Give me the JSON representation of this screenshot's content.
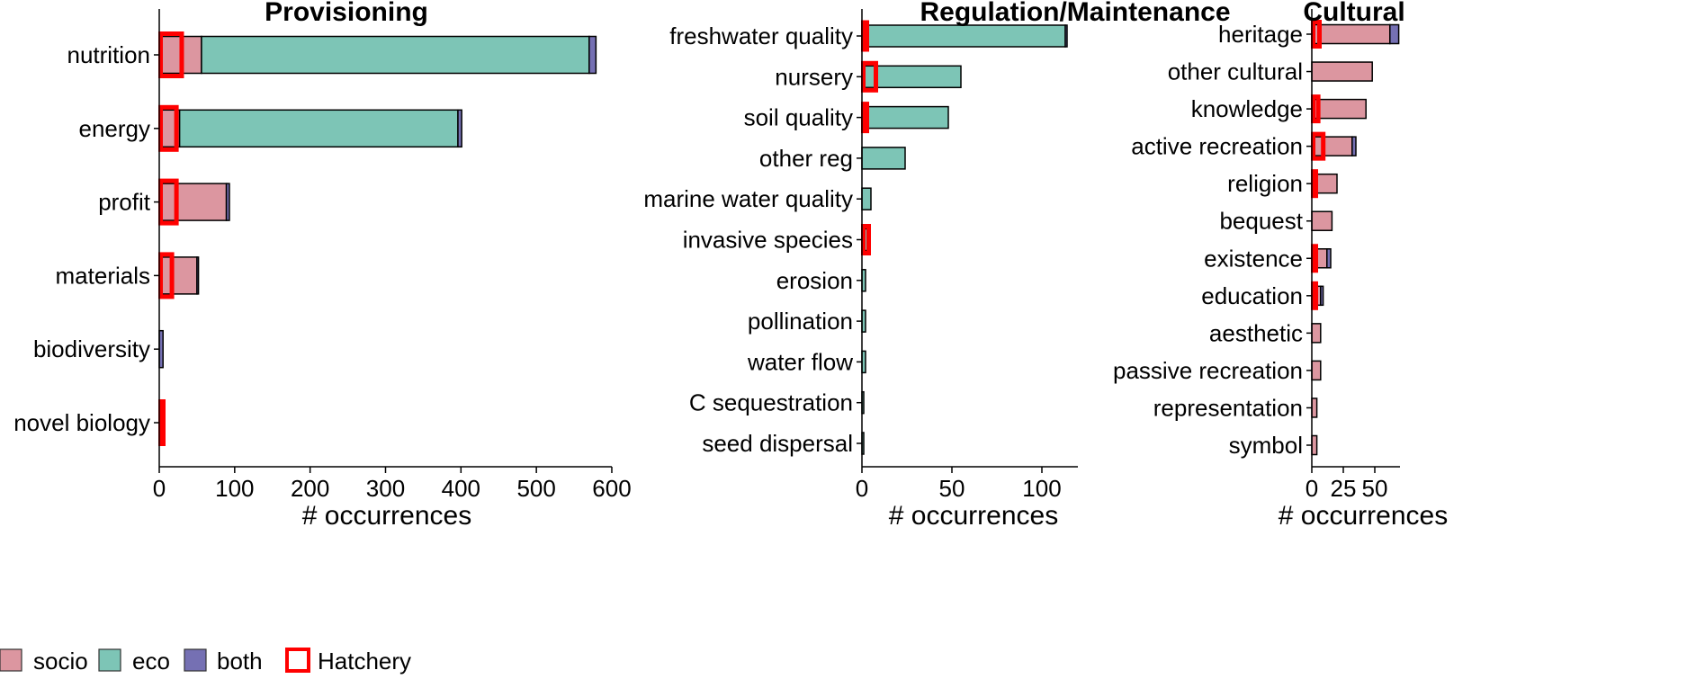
{
  "colors": {
    "socio": "#DC96A0",
    "eco": "#7DC5B6",
    "both": "#7570B3",
    "hatchery": "#FF0000",
    "outline": "#000000"
  },
  "chart_data": [
    {
      "type": "bar",
      "orientation": "horizontal",
      "stacked": true,
      "title": "Provisioning",
      "xlabel": "# occurrences",
      "xlim": [
        0,
        600
      ],
      "xticks": [
        0,
        100,
        200,
        300,
        400,
        500,
        600
      ],
      "categories": [
        "nutrition",
        "energy",
        "profit",
        "materials",
        "biodiversity",
        "novel biology"
      ],
      "series": [
        {
          "name": "socio",
          "values": [
            56,
            27,
            89,
            50,
            0,
            0
          ]
        },
        {
          "name": "eco",
          "values": [
            514,
            369,
            0,
            0,
            0,
            0
          ]
        },
        {
          "name": "both",
          "values": [
            9,
            5,
            4,
            2,
            5,
            0
          ]
        }
      ],
      "hatchery": [
        28,
        21,
        21,
        15,
        0,
        2
      ]
    },
    {
      "type": "bar",
      "orientation": "horizontal",
      "stacked": true,
      "title": "Regulation/Maintenance",
      "xlabel": "# occurrences",
      "xlim": [
        0,
        120
      ],
      "xticks": [
        0,
        50,
        100
      ],
      "categories": [
        "freshwater quality",
        "nursery",
        "soil quality",
        "other reg",
        "marine water quality",
        "invasive species",
        "erosion",
        "pollination",
        "water flow",
        "C sequestration",
        "seed dispersal"
      ],
      "series": [
        {
          "name": "socio",
          "values": [
            0,
            0,
            0,
            0,
            0,
            0,
            0,
            0,
            0,
            0,
            0
          ]
        },
        {
          "name": "eco",
          "values": [
            113,
            55,
            48,
            24,
            5,
            3,
            2,
            2,
            2,
            1,
            1
          ]
        },
        {
          "name": "both",
          "values": [
            1,
            0,
            0,
            0,
            0,
            0,
            0,
            0,
            0,
            0,
            0
          ]
        }
      ],
      "hatchery": [
        2,
        7,
        2,
        0,
        0,
        3,
        0,
        0,
        0,
        0,
        0
      ]
    },
    {
      "type": "bar",
      "orientation": "horizontal",
      "stacked": true,
      "title": "Cultural",
      "xlabel": "# occurrences",
      "xlim": [
        0,
        70
      ],
      "xticks": [
        0,
        25,
        50
      ],
      "xticklabels": [
        "0",
        "25",
        "50"
      ],
      "categories": [
        "heritage",
        "other cultural",
        "knowledge",
        "active recreation",
        "religion",
        "bequest",
        "existence",
        "education",
        "aesthetic",
        "passive recreation",
        "representation",
        "symbol"
      ],
      "series": [
        {
          "name": "socio",
          "values": [
            62,
            48,
            43,
            32,
            20,
            16,
            12,
            7,
            7,
            7,
            4,
            4
          ]
        },
        {
          "name": "eco",
          "values": [
            0,
            0,
            0,
            0,
            0,
            0,
            0,
            0,
            0,
            0,
            0,
            0
          ]
        },
        {
          "name": "both",
          "values": [
            7,
            0,
            0,
            3,
            0,
            0,
            3,
            2,
            0,
            0,
            0,
            0
          ]
        }
      ],
      "hatchery": [
        5,
        0,
        4,
        8,
        2,
        0,
        1,
        1,
        0,
        0,
        0,
        0
      ]
    }
  ],
  "legend": {
    "position": "bottom-left",
    "items": [
      {
        "key": "socio",
        "label": "socio"
      },
      {
        "key": "eco",
        "label": "eco"
      },
      {
        "key": "both",
        "label": "both"
      },
      {
        "key": "hatchery",
        "label": "Hatchery"
      }
    ]
  }
}
